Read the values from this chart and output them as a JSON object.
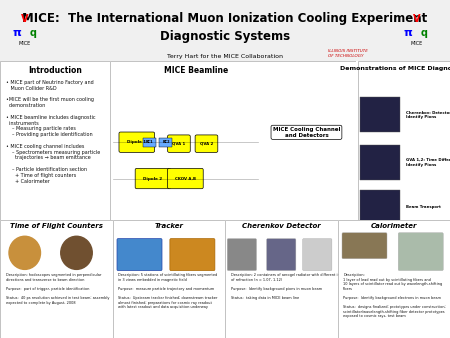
{
  "title_line1": "MICE:  The International Muon Ionization Cooling Experiment",
  "title_line2": "Diagnostic Systems",
  "subtitle": "Terry Hart for the MICE Collaboration",
  "institution": "ILLINOIS INSTITUTE\nOF TECHNOLOGY",
  "bg_color": "#ffffff",
  "header_bg": "#ffffff",
  "title_color": "#000000",
  "section_title_color": "#000000",
  "panel_bg": "#ffffff",
  "border_color": "#999999",
  "sections": {
    "intro": {
      "title": "Introduction",
      "bullets": [
        "• MICE part of Neutrino Factory and\n  Muon Collider R&D",
        "•MICE will be the first muon cooling\n  demonstration",
        "• MICE beamline includes diagnostic\n  instruments\n    – Measuring particle rates\n    – Providing particle identification",
        "• MICE cooling channel includes\n    – Spectrometers measuring particle\n      trajectories → beam emittance\n\n    – Particle identification section\n      + Time of flight counters\n      + Calorimeter"
      ]
    },
    "beamline_title": "MICE Beamline",
    "cooling_label": "MICE Cooling Channel\nand Detectors",
    "diagnostics_title": "Demonstrations of MICE Diagnostics",
    "tof_title": "Time of Flight Counters",
    "tracker_title": "Tracker",
    "cherenkov_title": "Cherenkov Detector",
    "calorimeter_title": "Calorimeter"
  },
  "tof_desc": "Description: hodoscopes segmented in perpendicular\ndirections and transverse to beam direction\n\nPurpose:  part of trigger, particle identification\n\nStatus:  40 ps resolution achieved in test beam; assembly\nexpected to complete by August, 2008",
  "tracker_desc": "Description: 5 stations of scintillating fibers segmented\nin 3 views embedded in magnetic field\n\nPurpose:  measure particle trajectory and momentum\n\nStatus:  Upstream tracker finished; downstream tracker\nalmost finished; preparations for cosmic ray readout\nwith latest readout and data acquisition underway",
  "cherenkov_desc": "Description: 2 containers of aerogel radiator with different indices\nof refraction (n = 1.07, 1.12)\n\nPurpose:  Identify background pions in muon beam\n\nStatus:  taking data in MICE beam line",
  "calorimeter_desc": "Description:\n1 layer of lead read out by scintillating fibers and\n10 layers of scintillator read out by wavelength-shifting fibers\n\nPurpose:  Identify background electrons in muon beam\n\nStatus:  designs finalized; prototypes under construction;\nscintillator/wavelength-shifting fiber detector prototypes\nexposed to cosmic rays, test beam"
}
